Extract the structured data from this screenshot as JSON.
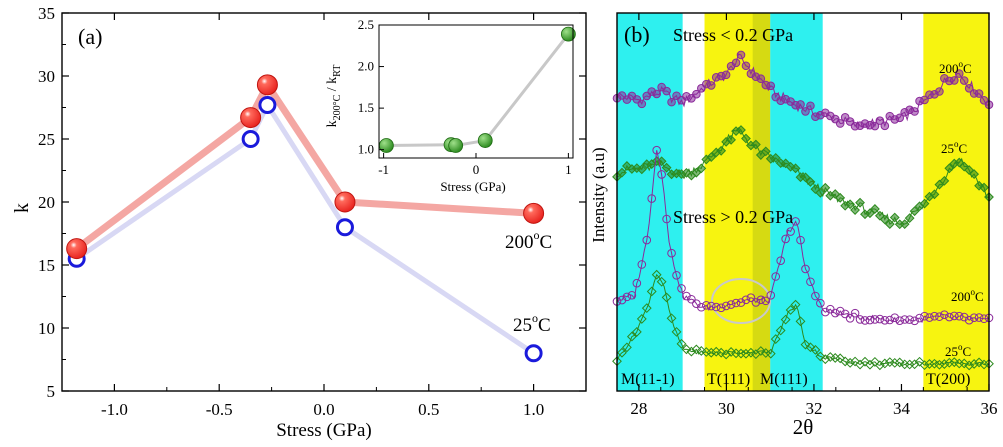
{
  "colors": {
    "red_marker": "#e8231f",
    "blue_marker": "#1a1adb",
    "red_line": "#f4a7a3",
    "blue_line": "#d8d8f4",
    "green_marker": "#2b8a1e",
    "inset_line": "#c8c8c8",
    "cyan_band": "#2ef0ef",
    "yellow_band": "#f7f410",
    "purple": "#8a2a9a",
    "green": "#2d8a1e",
    "circle_hint": "#c9c9c9"
  },
  "chart_data": [
    {
      "type": "scatter",
      "panel_label": "(a)",
      "xlabel": "Stress (GPa)",
      "ylabel": "k",
      "xlim": [
        -1.25,
        1.25
      ],
      "ylim": [
        5,
        35
      ],
      "xticks": [
        -1.0,
        -0.5,
        0.0,
        0.5,
        1.0
      ],
      "xtick_labels": [
        "-1.0",
        "-0.5",
        "0.0",
        "0.5",
        "1.0"
      ],
      "yticks": [
        5,
        10,
        15,
        20,
        25,
        30,
        35
      ],
      "ytick_labels": [
        "5",
        "10",
        "15",
        "20",
        "25",
        "30",
        "35"
      ],
      "series": [
        {
          "name": "200°C",
          "marker": "filled-circle",
          "label_text": "200",
          "label_sup": "o",
          "label_suffix": "C",
          "x": [
            -1.18,
            -0.35,
            -0.27,
            0.1,
            1.0
          ],
          "y": [
            16.3,
            26.7,
            29.3,
            20.0,
            19.1
          ]
        },
        {
          "name": "25°C",
          "marker": "open-circle",
          "label_text": "25",
          "label_sup": "o",
          "label_suffix": "C",
          "x": [
            -1.18,
            -0.35,
            -0.27,
            0.1,
            1.0
          ],
          "y": [
            15.5,
            25.0,
            27.7,
            18.0,
            8.0
          ]
        }
      ],
      "inset": {
        "type": "scatter",
        "xlabel": "Stress (GPa)",
        "ylabel_main": "k",
        "ylabel_sub1": "200°C",
        "ylabel_sep": " / k",
        "ylabel_sub2": "RT",
        "xlim": [
          -1.05,
          1.05
        ],
        "ylim": [
          0.9,
          2.5
        ],
        "xticks": [
          -1,
          0,
          1
        ],
        "xtick_labels": [
          "-1",
          "0",
          "1"
        ],
        "yticks": [
          1.0,
          1.5,
          2.0,
          2.5
        ],
        "ytick_labels": [
          "1.0",
          "1.5",
          "2.0",
          "2.5"
        ],
        "x": [
          -0.97,
          -0.27,
          -0.22,
          0.1,
          1.0
        ],
        "y": [
          1.05,
          1.06,
          1.05,
          1.11,
          2.39
        ]
      }
    },
    {
      "type": "line",
      "panel_label": "(b)",
      "xlabel": "2θ",
      "ylabel": "Intensity (a.u)",
      "xlim": [
        27.5,
        36
      ],
      "xticks": [
        28,
        30,
        32,
        34,
        36
      ],
      "xtick_labels": [
        "28",
        "30",
        "32",
        "34",
        "36"
      ],
      "bands": [
        {
          "color": "cyan",
          "from": 27.5,
          "to": 29.0
        },
        {
          "color": "yellow",
          "from": 29.5,
          "to": 31.0
        },
        {
          "color": "cyan",
          "from": 31.0,
          "to": 32.2
        },
        {
          "color": "yellow",
          "from": 34.5,
          "to": 36.0
        }
      ],
      "annotations": {
        "top_group": "Stress < 0.2 GPa",
        "bottom_group": "Stress > 0.2 GPa",
        "peak_labels": [
          "M(11-1)",
          "T(111)",
          "M(111)",
          "T(200)"
        ],
        "trace_labels": [
          {
            "text": "200",
            "sup": "o",
            "suffix": "C"
          },
          {
            "text": "25",
            "sup": "o",
            "suffix": "C"
          },
          {
            "text": "200",
            "sup": "o",
            "suffix": "C"
          },
          {
            "text": "25",
            "sup": "o",
            "suffix": "C"
          }
        ]
      },
      "series": [
        {
          "name": "200°C (Stress < 0.2 GPa)",
          "marker": "half-filled-circle",
          "color": "purple",
          "x": [
            27.5,
            28.0,
            28.5,
            29.0,
            29.5,
            30.0,
            30.3,
            30.6,
            31.0,
            31.5,
            32.0,
            32.5,
            33.0,
            33.5,
            34.0,
            34.5,
            35.0,
            35.3,
            35.6,
            36.0
          ],
          "y": [
            0.0,
            -0.03,
            0.02,
            -0.05,
            0.05,
            0.12,
            0.22,
            0.14,
            0.03,
            -0.05,
            -0.1,
            -0.14,
            -0.18,
            -0.16,
            -0.14,
            -0.05,
            0.08,
            0.13,
            0.05,
            -0.05
          ]
        },
        {
          "name": "25°C (Stress < 0.2 GPa)",
          "marker": "half-filled-diamond",
          "color": "green",
          "x": [
            27.5,
            28.0,
            28.5,
            29.0,
            29.5,
            30.0,
            30.3,
            30.6,
            31.0,
            31.5,
            32.0,
            32.5,
            33.0,
            33.5,
            34.0,
            34.5,
            35.0,
            35.3,
            35.6,
            36.0
          ],
          "y": [
            0.0,
            0.02,
            0.04,
            -0.02,
            0.05,
            0.18,
            0.25,
            0.15,
            0.08,
            0.02,
            -0.08,
            -0.16,
            -0.2,
            -0.26,
            -0.3,
            -0.2,
            -0.02,
            0.08,
            0.0,
            -0.15
          ]
        },
        {
          "name": "200°C (Stress > 0.2 GPa)",
          "marker": "open-circle",
          "color": "purple",
          "x": [
            27.5,
            27.9,
            28.2,
            28.4,
            28.55,
            28.7,
            29.0,
            29.5,
            30.0,
            30.5,
            31.0,
            31.4,
            31.6,
            31.8,
            32.2,
            33.0,
            34.0,
            35.0,
            36.0
          ],
          "y": [
            0.0,
            0.02,
            0.3,
            0.72,
            0.58,
            0.25,
            0.02,
            -0.04,
            -0.02,
            0.0,
            0.0,
            0.32,
            0.38,
            0.15,
            -0.05,
            -0.08,
            -0.1,
            -0.08,
            -0.1
          ]
        },
        {
          "name": "25°C (Stress > 0.2 GPa)",
          "marker": "open-diamond",
          "color": "green",
          "x": [
            27.5,
            27.9,
            28.2,
            28.4,
            28.55,
            28.75,
            29.0,
            29.5,
            30.0,
            30.5,
            31.0,
            31.4,
            31.6,
            31.8,
            32.2,
            33.0,
            34.0,
            35.0,
            36.0
          ],
          "y": [
            0.0,
            0.18,
            0.38,
            0.62,
            0.55,
            0.28,
            0.08,
            0.05,
            0.05,
            0.06,
            0.05,
            0.33,
            0.4,
            0.12,
            0.02,
            -0.02,
            -0.03,
            -0.02,
            -0.03
          ]
        }
      ]
    }
  ]
}
